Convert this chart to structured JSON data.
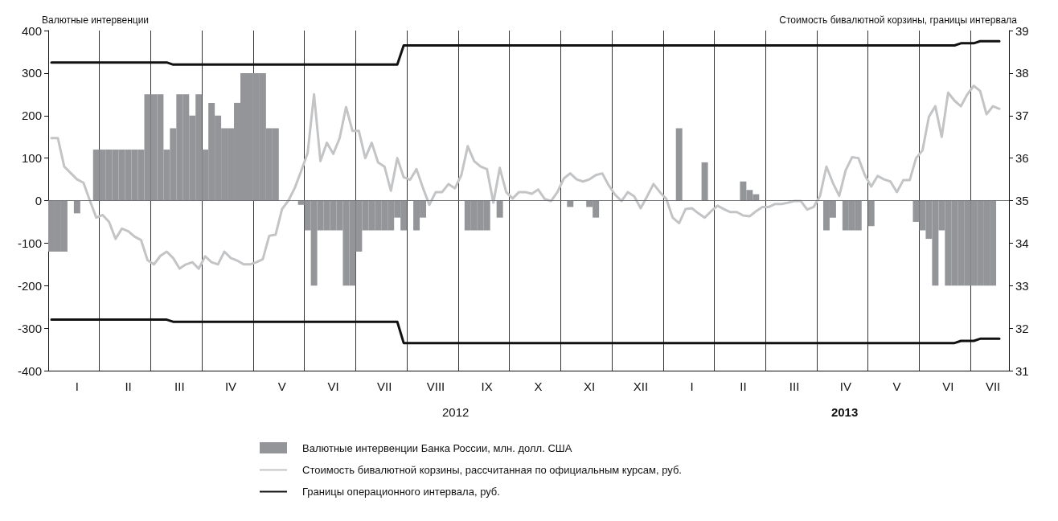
{
  "chart_data": {
    "type": "bar",
    "ylabel": "Валютные интервенции",
    "y2label": "Стоимость бивалютной корзины, границы интервала",
    "categories": [
      null,
      null,
      null,
      null,
      "I",
      null,
      null,
      null,
      null,
      null,
      null,
      null,
      "II",
      null,
      null,
      null,
      null,
      null,
      null,
      null,
      "III",
      null,
      null,
      null,
      null,
      null,
      null,
      null,
      "IV",
      null,
      null,
      null,
      null,
      null,
      null,
      null,
      "V",
      null,
      null,
      null,
      null,
      null,
      null,
      null,
      "VI",
      null,
      null,
      null,
      null,
      null,
      null,
      null,
      "VII",
      null,
      null,
      null,
      null,
      null,
      null,
      null,
      "VIII",
      null,
      null,
      null,
      null,
      null,
      null,
      null,
      "IX",
      null,
      null,
      null,
      null,
      null,
      null,
      null,
      "X",
      null,
      null,
      null,
      null,
      null,
      null,
      null,
      "XI",
      null,
      null,
      null,
      null,
      null,
      null,
      null,
      "XII",
      null,
      null,
      null,
      null,
      null,
      null,
      null,
      "I",
      null,
      null,
      null,
      null,
      null,
      null,
      null,
      "II",
      null,
      null,
      null,
      null,
      null,
      null,
      null,
      "III",
      null,
      null,
      null,
      null,
      null,
      null,
      null,
      "IV",
      null,
      null,
      null,
      null,
      null,
      null,
      null,
      "V",
      null,
      null,
      null,
      null,
      null,
      null,
      null,
      "VI",
      null,
      null,
      null,
      null,
      null,
      null,
      "VII",
      null,
      null
    ],
    "ylim": [
      -400,
      400
    ],
    "yticks": [
      -400,
      -300,
      -200,
      -100,
      0,
      100,
      200,
      300,
      400
    ],
    "y2lim": [
      31,
      39
    ],
    "y2ticks": [
      31,
      32,
      33,
      34,
      35,
      36,
      37,
      38,
      39
    ],
    "grid": "x",
    "legend": "bottom",
    "ref_lines": [
      {
        "axis": "y",
        "value": 0,
        "color": "#6d6e71"
      }
    ],
    "annotations": [
      "2012",
      "2013"
    ],
    "series": [
      {
        "name": "Валютные интервенции Банка России, млн. долл. США",
        "color": "#939598",
        "values": [
          -120,
          -120,
          -120,
          null,
          -30,
          null,
          null,
          120,
          120,
          120,
          120,
          120,
          120,
          120,
          120,
          250,
          250,
          250,
          120,
          170,
          250,
          250,
          200,
          250,
          120,
          230,
          200,
          170,
          170,
          230,
          300,
          300,
          300,
          300,
          170,
          170,
          null,
          null,
          null,
          -10,
          -70,
          -200,
          -70,
          -70,
          -70,
          -70,
          -200,
          -200,
          -120,
          -70,
          -70,
          -70,
          -70,
          -70,
          -40,
          -70,
          null,
          -70,
          -40,
          null,
          null,
          null,
          null,
          null,
          null,
          -70,
          -70,
          -70,
          -70,
          null,
          -40,
          null,
          null,
          null,
          null,
          null,
          null,
          null,
          null,
          null,
          null,
          -15,
          null,
          null,
          -15,
          -40,
          null,
          null,
          null,
          null,
          null,
          null,
          null,
          null,
          null,
          null,
          null,
          null,
          170,
          null,
          null,
          null,
          90,
          null,
          null,
          null,
          null,
          null,
          45,
          25,
          15,
          null,
          null,
          null,
          null,
          null,
          null,
          null,
          null,
          null,
          null,
          -70,
          -40,
          null,
          -70,
          -70,
          -70,
          null,
          -60,
          null,
          null,
          null,
          null,
          null,
          null,
          -50,
          -70,
          -90,
          -200,
          -70,
          -200,
          -200,
          -200,
          -200,
          -200,
          -200,
          -200,
          -200,
          null,
          null
        ]
      },
      {
        "type": "line",
        "axis": "y2",
        "name": "Стоимость бивалютной корзины, рассчитанная по официальным курсам, руб.",
        "color": "#c3c4c6",
        "values": [
          36.47,
          36.47,
          35.8,
          35.65,
          35.5,
          35.42,
          35.0,
          34.6,
          34.66,
          34.5,
          34.1,
          34.34,
          34.28,
          34.15,
          34.07,
          33.6,
          33.5,
          33.7,
          33.8,
          33.65,
          33.4,
          33.5,
          33.55,
          33.4,
          33.69,
          33.55,
          33.5,
          33.8,
          33.65,
          33.59,
          33.5,
          33.5,
          33.55,
          33.62,
          34.17,
          34.2,
          34.8,
          35.0,
          35.3,
          35.7,
          36.12,
          37.5,
          35.93,
          36.36,
          36.1,
          36.47,
          37.2,
          36.64,
          36.64,
          36.0,
          36.36,
          35.9,
          35.8,
          35.23,
          36.0,
          35.55,
          35.49,
          35.74,
          35.3,
          34.9,
          35.2,
          35.2,
          35.39,
          35.29,
          35.6,
          36.28,
          35.93,
          35.8,
          35.74,
          34.95,
          35.77,
          35.2,
          35.05,
          35.2,
          35.2,
          35.16,
          35.26,
          35.04,
          34.99,
          35.2,
          35.52,
          35.64,
          35.5,
          35.45,
          35.5,
          35.6,
          35.64,
          35.36,
          35.14,
          34.99,
          35.2,
          35.1,
          34.82,
          35.1,
          35.39,
          35.2,
          35.04,
          34.6,
          34.47,
          34.8,
          34.82,
          34.7,
          34.6,
          34.75,
          34.88,
          34.8,
          34.73,
          34.73,
          34.65,
          34.63,
          34.75,
          34.85,
          34.85,
          34.92,
          34.92,
          34.95,
          34.99,
          34.99,
          34.79,
          34.85,
          35.11,
          35.8,
          35.42,
          35.11,
          35.71,
          36.02,
          36.0,
          35.6,
          35.33,
          35.58,
          35.5,
          35.45,
          35.2,
          35.48,
          35.48,
          36.0,
          36.18,
          36.97,
          37.22,
          36.5,
          37.54,
          37.35,
          37.22,
          37.5,
          37.7,
          37.58,
          37.03,
          37.22,
          37.16,
          null
        ]
      },
      {
        "type": "line",
        "axis": "y2",
        "name": "Границы операционного интервала, руб.",
        "color": "#111111",
        "values": [
          38.25,
          38.25,
          38.25,
          38.25,
          38.25,
          38.25,
          38.25,
          38.25,
          38.25,
          38.25,
          38.25,
          38.25,
          38.25,
          38.25,
          38.25,
          38.25,
          38.25,
          38.25,
          38.25,
          38.2,
          38.2,
          38.2,
          38.2,
          38.2,
          38.2,
          38.2,
          38.2,
          38.2,
          38.2,
          38.2,
          38.2,
          38.2,
          38.2,
          38.2,
          38.2,
          38.2,
          38.2,
          38.2,
          38.2,
          38.2,
          38.2,
          38.2,
          38.2,
          38.2,
          38.2,
          38.2,
          38.2,
          38.2,
          38.2,
          38.2,
          38.2,
          38.2,
          38.2,
          38.2,
          38.2,
          38.65,
          38.65,
          38.65,
          38.65,
          38.65,
          38.65,
          38.65,
          38.65,
          38.65,
          38.65,
          38.65,
          38.65,
          38.65,
          38.65,
          38.65,
          38.65,
          38.65,
          38.65,
          38.65,
          38.65,
          38.65,
          38.65,
          38.65,
          38.65,
          38.65,
          38.65,
          38.65,
          38.65,
          38.65,
          38.65,
          38.65,
          38.65,
          38.65,
          38.65,
          38.65,
          38.65,
          38.65,
          38.65,
          38.65,
          38.65,
          38.65,
          38.65,
          38.65,
          38.65,
          38.65,
          38.65,
          38.65,
          38.65,
          38.65,
          38.65,
          38.65,
          38.65,
          38.65,
          38.65,
          38.65,
          38.65,
          38.65,
          38.65,
          38.65,
          38.65,
          38.65,
          38.65,
          38.65,
          38.65,
          38.65,
          38.65,
          38.65,
          38.65,
          38.65,
          38.65,
          38.65,
          38.65,
          38.65,
          38.65,
          38.65,
          38.65,
          38.65,
          38.65,
          38.65,
          38.65,
          38.65,
          38.65,
          38.65,
          38.65,
          38.65,
          38.65,
          38.65,
          38.7,
          38.7,
          38.7,
          38.75,
          38.75,
          38.75,
          38.75,
          null
        ]
      },
      {
        "type": "line",
        "axis": "y2",
        "color": "#111111",
        "values": [
          32.2,
          32.2,
          32.2,
          32.2,
          32.2,
          32.2,
          32.2,
          32.2,
          32.2,
          32.2,
          32.2,
          32.2,
          32.2,
          32.2,
          32.2,
          32.2,
          32.2,
          32.2,
          32.2,
          32.15,
          32.15,
          32.15,
          32.15,
          32.15,
          32.15,
          32.15,
          32.15,
          32.15,
          32.15,
          32.15,
          32.15,
          32.15,
          32.15,
          32.15,
          32.15,
          32.15,
          32.15,
          32.15,
          32.15,
          32.15,
          32.15,
          32.15,
          32.15,
          32.15,
          32.15,
          32.15,
          32.15,
          32.15,
          32.15,
          32.15,
          32.15,
          32.15,
          32.15,
          32.15,
          32.15,
          31.65,
          31.65,
          31.65,
          31.65,
          31.65,
          31.65,
          31.65,
          31.65,
          31.65,
          31.65,
          31.65,
          31.65,
          31.65,
          31.65,
          31.65,
          31.65,
          31.65,
          31.65,
          31.65,
          31.65,
          31.65,
          31.65,
          31.65,
          31.65,
          31.65,
          31.65,
          31.65,
          31.65,
          31.65,
          31.65,
          31.65,
          31.65,
          31.65,
          31.65,
          31.65,
          31.65,
          31.65,
          31.65,
          31.65,
          31.65,
          31.65,
          31.65,
          31.65,
          31.65,
          31.65,
          31.65,
          31.65,
          31.65,
          31.65,
          31.65,
          31.65,
          31.65,
          31.65,
          31.65,
          31.65,
          31.65,
          31.65,
          31.65,
          31.65,
          31.65,
          31.65,
          31.65,
          31.65,
          31.65,
          31.65,
          31.65,
          31.65,
          31.65,
          31.65,
          31.65,
          31.65,
          31.65,
          31.65,
          31.65,
          31.65,
          31.65,
          31.65,
          31.65,
          31.65,
          31.65,
          31.65,
          31.65,
          31.65,
          31.65,
          31.65,
          31.65,
          31.65,
          31.7,
          31.7,
          31.7,
          31.75,
          31.75,
          31.75,
          31.75,
          null
        ]
      }
    ]
  }
}
